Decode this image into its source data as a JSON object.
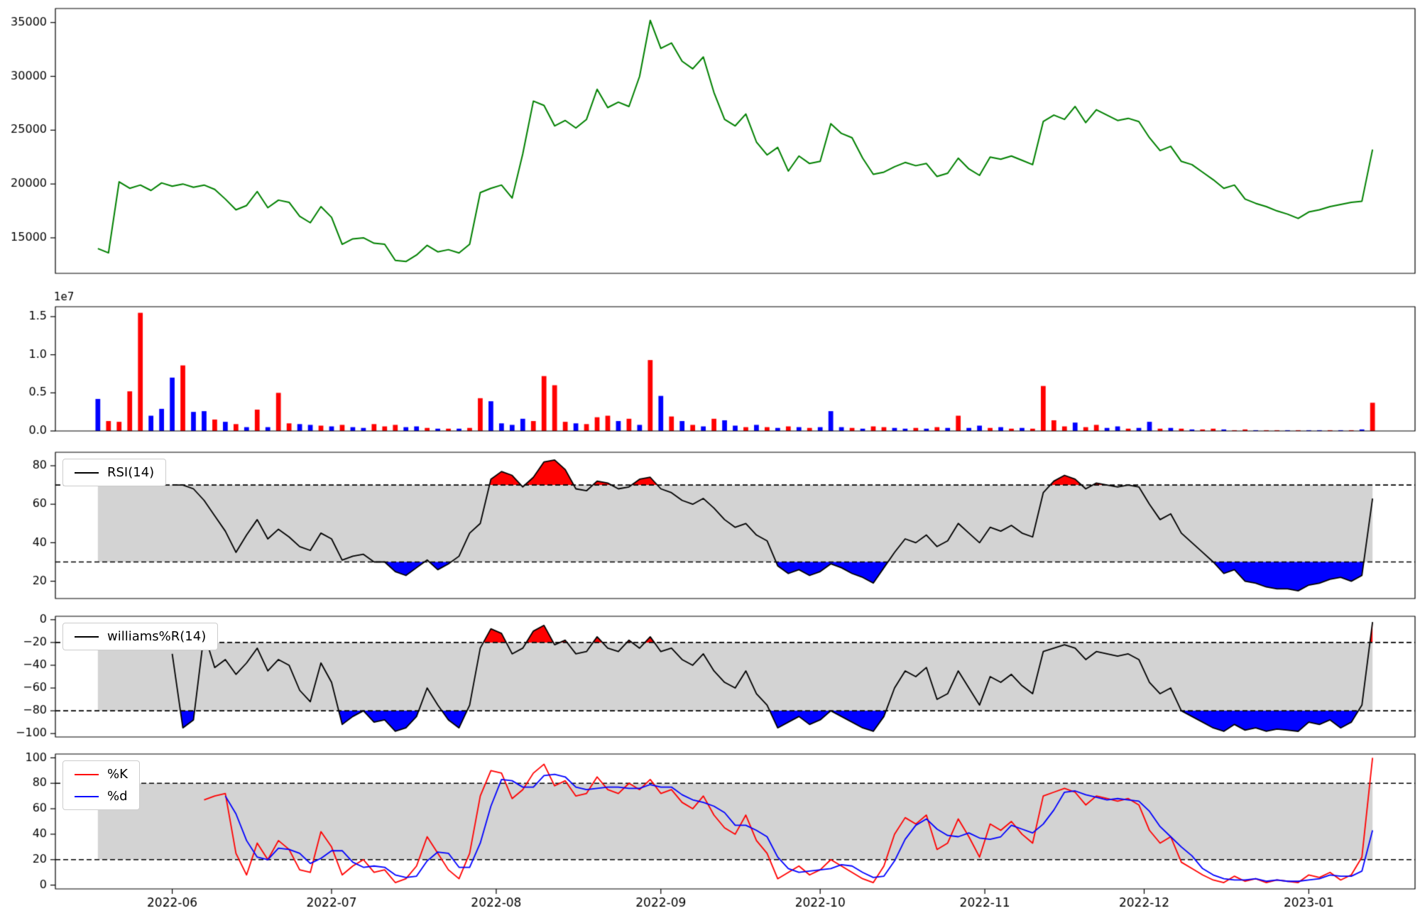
{
  "legends": {
    "rsi": "RSI(14)",
    "williams": "williams%R(14)",
    "stoch_k": "%K",
    "stoch_d": "%d"
  },
  "chart_data": {
    "shared_x": {
      "x_start_date": "2022-05-18",
      "x_step_days": 2,
      "xlim": [
        -4,
        124
      ],
      "tick_positions": [
        7,
        22,
        37.5,
        53,
        68,
        83.5,
        98.5,
        114
      ],
      "tick_labels": [
        "2022-06",
        "2022-07",
        "2022-08",
        "2022-09",
        "2022-10",
        "2022-11",
        "2022-12",
        "2023-01"
      ]
    },
    "colors_map": {
      "r": "#ff0000",
      "b": "#0000ff",
      "green": "#008000",
      "black": "#000000",
      "band": "#d3d3d3"
    },
    "panels": [
      {
        "name": "price",
        "type": "line",
        "color": "#008000",
        "ylim": [
          11700,
          36300
        ],
        "yticks": [
          15000,
          20000,
          25000,
          30000,
          35000
        ],
        "ytick_labels": [
          "15000",
          "20000",
          "25000",
          "30000",
          "35000"
        ],
        "values": [
          14000,
          13600,
          20200,
          19600,
          19900,
          19400,
          20100,
          19800,
          20000,
          19700,
          19900,
          19500,
          18600,
          17600,
          18000,
          19300,
          17800,
          18500,
          18300,
          17000,
          16400,
          17900,
          16900,
          14400,
          14900,
          15000,
          14500,
          14400,
          12900,
          12800,
          13400,
          14300,
          13700,
          13900,
          13600,
          14400,
          19200,
          19600,
          19900,
          18700,
          22800,
          27700,
          27300,
          25400,
          25900,
          25200,
          26000,
          28800,
          27100,
          27600,
          27200,
          30000,
          35200,
          32600,
          33100,
          31400,
          30700,
          31800,
          28500,
          26000,
          25400,
          26500,
          23900,
          22700,
          23400,
          21200,
          22600,
          21900,
          22100,
          25600,
          24700,
          24300,
          22400,
          20900,
          21100,
          21600,
          22000,
          21700,
          21900,
          20700,
          21000,
          22400,
          21400,
          20800,
          22500,
          22300,
          22600,
          22200,
          21800,
          25800,
          26400,
          26000,
          27200,
          25700,
          26900,
          26400,
          25900,
          26100,
          25800,
          24300,
          23100,
          23500,
          22100,
          21800,
          21100,
          20400,
          19600,
          19900,
          18600,
          18200,
          17900,
          17500,
          17200,
          16800,
          17400,
          17600,
          17900,
          18100,
          18300,
          18400,
          23200
        ]
      },
      {
        "name": "volume",
        "type": "bar",
        "offset_label": "1e7",
        "ylim": [
          0,
          16300000
        ],
        "yticks": [
          0,
          5000000,
          10000000,
          15000000
        ],
        "ytick_labels": [
          "0.0",
          "0.5",
          "1.0",
          "1.5"
        ],
        "values": [
          4200000,
          1300000,
          1200000,
          5200000,
          15500000,
          2000000,
          2900000,
          7000000,
          8600000,
          2500000,
          2600000,
          1500000,
          1200000,
          900000,
          500000,
          2800000,
          500000,
          5000000,
          1000000,
          900000,
          800000,
          700000,
          600000,
          800000,
          500000,
          400000,
          900000,
          600000,
          800000,
          500000,
          600000,
          400000,
          300000,
          300000,
          300000,
          400000,
          4300000,
          3900000,
          1000000,
          800000,
          1600000,
          1300000,
          7200000,
          6000000,
          1200000,
          1000000,
          900000,
          1800000,
          2000000,
          1300000,
          1600000,
          800000,
          9300000,
          4600000,
          1900000,
          1300000,
          800000,
          600000,
          1600000,
          1400000,
          700000,
          500000,
          800000,
          500000,
          400000,
          600000,
          500000,
          400000,
          500000,
          2600000,
          500000,
          400000,
          300000,
          600000,
          500000,
          400000,
          300000,
          400000,
          300000,
          500000,
          400000,
          2000000,
          400000,
          700000,
          400000,
          500000,
          300000,
          400000,
          300000,
          5900000,
          1400000,
          600000,
          1100000,
          500000,
          800000,
          400000,
          600000,
          300000,
          400000,
          1200000,
          300000,
          400000,
          300000,
          200000,
          200000,
          300000,
          200000,
          100000,
          200000,
          100000,
          100000,
          100000,
          100000,
          100000,
          100000,
          100000,
          100000,
          100000,
          100000,
          200000,
          3700000
        ],
        "bar_colors": [
          "b",
          "r",
          "r",
          "r",
          "r",
          "b",
          "b",
          "b",
          "r",
          "b",
          "b",
          "r",
          "b",
          "r",
          "b",
          "r",
          "b",
          "r",
          "r",
          "b",
          "b",
          "r",
          "b",
          "r",
          "b",
          "b",
          "r",
          "r",
          "r",
          "b",
          "b",
          "r",
          "b",
          "r",
          "b",
          "r",
          "r",
          "b",
          "b",
          "b",
          "b",
          "r",
          "r",
          "r",
          "r",
          "b",
          "r",
          "r",
          "r",
          "b",
          "r",
          "b",
          "r",
          "b",
          "r",
          "b",
          "r",
          "b",
          "r",
          "b",
          "b",
          "r",
          "b",
          "r",
          "b",
          "r",
          "b",
          "r",
          "b",
          "b",
          "b",
          "r",
          "b",
          "r",
          "r",
          "b",
          "b",
          "r",
          "b",
          "r",
          "b",
          "r",
          "b",
          "b",
          "r",
          "b",
          "r",
          "b",
          "r",
          "r",
          "r",
          "r",
          "b",
          "r",
          "r",
          "b",
          "b",
          "r",
          "b",
          "b",
          "r",
          "b",
          "r",
          "b",
          "r",
          "r",
          "b",
          "r",
          "r",
          "b",
          "r",
          "r",
          "b",
          "r",
          "b",
          "b",
          "r",
          "b",
          "r",
          "b",
          "r"
        ]
      },
      {
        "name": "rsi",
        "type": "line_with_bands",
        "legend": "RSI(14)",
        "color": "#000000",
        "upper": 70,
        "lower": 30,
        "band_color": "#d3d3d3",
        "over_color": "#ff0000",
        "under_color": "#0000ff",
        "ylim": [
          11,
          87
        ],
        "yticks": [
          20,
          40,
          60,
          80
        ],
        "ytick_labels": [
          "20",
          "40",
          "60",
          "80"
        ],
        "values": [
          null,
          null,
          null,
          null,
          null,
          null,
          null,
          70,
          70,
          68,
          62,
          54,
          46,
          35,
          44,
          52,
          42,
          47,
          43,
          38,
          36,
          45,
          42,
          31,
          33,
          34,
          30,
          30,
          25,
          23,
          27,
          31,
          26,
          29,
          33,
          45,
          50,
          73,
          77,
          75,
          69,
          74,
          82,
          83,
          78,
          68,
          67,
          72,
          71,
          68,
          69,
          73,
          74,
          68,
          66,
          62,
          60,
          63,
          58,
          52,
          48,
          50,
          44,
          41,
          28,
          24,
          26,
          23,
          25,
          29,
          27,
          24,
          22,
          19,
          27,
          35,
          42,
          40,
          44,
          38,
          41,
          50,
          45,
          40,
          48,
          46,
          49,
          45,
          43,
          66,
          72,
          75,
          73,
          68,
          71,
          70,
          69,
          70,
          69,
          60,
          52,
          55,
          45,
          40,
          35,
          30,
          24,
          26,
          20,
          19,
          17,
          16,
          16,
          15,
          18,
          19,
          21,
          22,
          20,
          23,
          63
        ]
      },
      {
        "name": "williams_r",
        "type": "line_with_bands",
        "legend": "williams%R(14)",
        "color": "#000000",
        "upper": -20,
        "lower": -80,
        "band_color": "#d3d3d3",
        "over_color": "#ff0000",
        "under_color": "#0000ff",
        "ylim": [
          -103,
          3
        ],
        "yticks": [
          0,
          -20,
          -40,
          -60,
          -80,
          -100
        ],
        "ytick_labels": [
          "0",
          "−20",
          "−40",
          "−60",
          "−80",
          "−100"
        ],
        "values": [
          null,
          null,
          null,
          null,
          null,
          null,
          null,
          -30,
          -95,
          -88,
          -12,
          -42,
          -35,
          -48,
          -38,
          -25,
          -45,
          -35,
          -40,
          -62,
          -72,
          -38,
          -55,
          -92,
          -85,
          -80,
          -90,
          -88,
          -98,
          -95,
          -85,
          -60,
          -75,
          -88,
          -95,
          -75,
          -25,
          -8,
          -12,
          -30,
          -25,
          -10,
          -5,
          -22,
          -18,
          -30,
          -28,
          -15,
          -25,
          -28,
          -18,
          -25,
          -15,
          -28,
          -25,
          -35,
          -40,
          -30,
          -45,
          -55,
          -60,
          -45,
          -65,
          -75,
          -95,
          -90,
          -85,
          -92,
          -88,
          -80,
          -85,
          -90,
          -95,
          -98,
          -85,
          -60,
          -45,
          -50,
          -42,
          -70,
          -65,
          -45,
          -60,
          -75,
          -50,
          -55,
          -48,
          -58,
          -65,
          -28,
          -25,
          -22,
          -25,
          -35,
          -28,
          -30,
          -32,
          -30,
          -35,
          -55,
          -65,
          -60,
          -80,
          -85,
          -90,
          -95,
          -98,
          -92,
          -97,
          -95,
          -98,
          -96,
          -97,
          -98,
          -90,
          -92,
          -88,
          -95,
          -90,
          -75,
          -2
        ]
      },
      {
        "name": "stochastic",
        "type": "multi_line_with_bands",
        "upper": 80,
        "lower": 20,
        "band_color": "#d3d3d3",
        "ylim": [
          -3,
          103
        ],
        "yticks": [
          0,
          20,
          40,
          60,
          80,
          100
        ],
        "ytick_labels": [
          "0",
          "20",
          "40",
          "60",
          "80",
          "100"
        ],
        "series": [
          {
            "name": "%K",
            "color": "#ff0000",
            "values": [
              null,
              null,
              null,
              null,
              null,
              null,
              null,
              null,
              null,
              null,
              67,
              70,
              72,
              25,
              8,
              33,
              20,
              35,
              28,
              12,
              10,
              42,
              30,
              8,
              15,
              20,
              10,
              12,
              2,
              5,
              15,
              38,
              25,
              12,
              5,
              25,
              70,
              90,
              88,
              68,
              75,
              88,
              95,
              78,
              82,
              70,
              72,
              85,
              75,
              72,
              80,
              75,
              83,
              72,
              75,
              65,
              60,
              70,
              55,
              45,
              40,
              55,
              35,
              25,
              5,
              10,
              15,
              8,
              12,
              20,
              15,
              10,
              5,
              2,
              15,
              40,
              53,
              48,
              55,
              28,
              33,
              52,
              38,
              22,
              48,
              43,
              50,
              40,
              33,
              70,
              73,
              76,
              73,
              63,
              70,
              68,
              66,
              68,
              63,
              43,
              33,
              38,
              18,
              13,
              8,
              4,
              2,
              7,
              3,
              5,
              2,
              4,
              3,
              2,
              8,
              6,
              10,
              4,
              8,
              22,
              100
            ]
          },
          {
            "name": "%d",
            "color": "#0000ff",
            "values": [
              null,
              null,
              null,
              null,
              null,
              null,
              null,
              null,
              null,
              null,
              null,
              null,
              70,
              56,
              35,
              22,
              20,
              29,
              28,
              25,
              17,
              21,
              27,
              27,
              18,
              14,
              15,
              14,
              8,
              6,
              7,
              19,
              26,
              25,
              14,
              14,
              33,
              62,
              83,
              82,
              77,
              77,
              86,
              87,
              85,
              77,
              75,
              76,
              77,
              77,
              76,
              76,
              79,
              77,
              77,
              71,
              67,
              65,
              62,
              57,
              47,
              47,
              43,
              38,
              22,
              13,
              10,
              11,
              12,
              13,
              16,
              15,
              10,
              6,
              7,
              19,
              36,
              47,
              52,
              44,
              39,
              38,
              41,
              37,
              36,
              38,
              47,
              44,
              41,
              48,
              59,
              73,
              74,
              71,
              69,
              67,
              68,
              67,
              66,
              58,
              46,
              38,
              30,
              23,
              13,
              8,
              5,
              4,
              4,
              5,
              3,
              4,
              3,
              3,
              4,
              5,
              8,
              7,
              7,
              11,
              43
            ]
          }
        ]
      }
    ]
  }
}
